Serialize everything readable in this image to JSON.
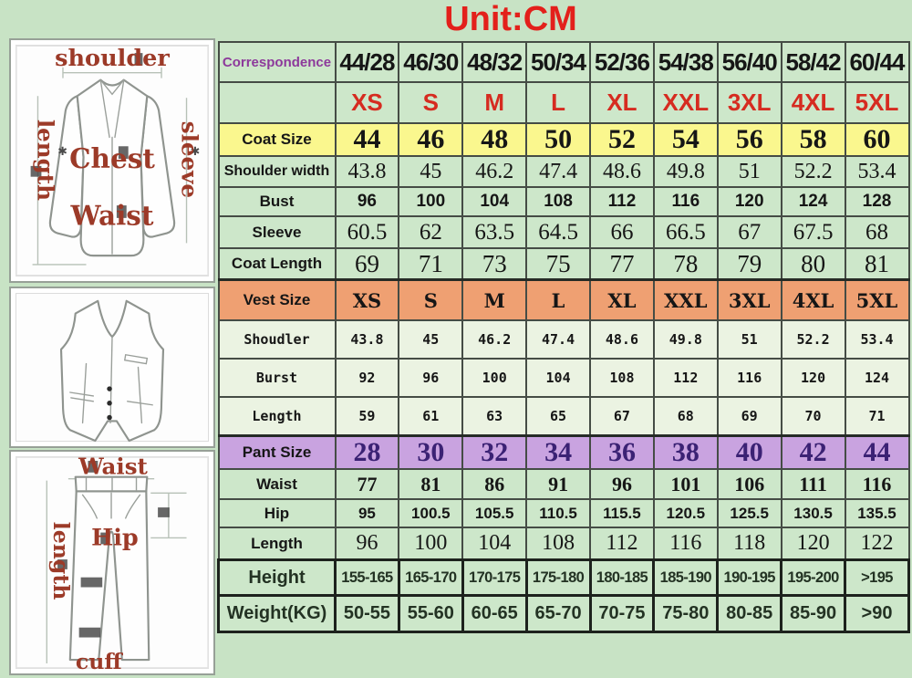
{
  "title": "Unit:CM",
  "colors": {
    "background_green": "#c8e3c5",
    "cell_green": "#cde7ca",
    "vest_row_green": "#ebf3e2",
    "coat_row_yellow": "#faf78e",
    "vest_row_orange": "#efa072",
    "pant_row_purple": "#c9a3e0",
    "title_red": "#e3201b",
    "size_red": "#d62b20",
    "correspondence_purple": "#8d3a9b",
    "pant_number_purple": "#3b2274",
    "diagram_label_red": "#9c3a28"
  },
  "diagrams": {
    "jacket": {
      "shoulder": "shoulder",
      "length": "length",
      "sleeve": "sleeve",
      "chest": "Chest",
      "waist": "Waist"
    },
    "pants": {
      "waist": "Waist",
      "length": "length",
      "hip": "Hip",
      "cuff": "cuff"
    }
  },
  "chart_data": {
    "type": "table",
    "title": "Unit:CM",
    "header_row": {
      "label": "Correspondence",
      "values": [
        "44/28",
        "46/30",
        "48/32",
        "50/34",
        "52/36",
        "54/38",
        "56/40",
        "58/42",
        "60/44"
      ]
    },
    "size_row": {
      "label": "",
      "values": [
        "XS",
        "S",
        "M",
        "L",
        "XL",
        "XXL",
        "3XL",
        "4XL",
        "5XL"
      ]
    },
    "rows": [
      {
        "label": "Coat Size",
        "kind": "coatsize",
        "values": [
          "44",
          "46",
          "48",
          "50",
          "52",
          "54",
          "56",
          "58",
          "60"
        ]
      },
      {
        "label": "Shoulder width",
        "kind": "shoulder",
        "values": [
          "43.8",
          "45",
          "46.2",
          "47.4",
          "48.6",
          "49.8",
          "51",
          "52.2",
          "53.4"
        ]
      },
      {
        "label": "Bust",
        "kind": "bust",
        "values": [
          "96",
          "100",
          "104",
          "108",
          "112",
          "116",
          "120",
          "124",
          "128"
        ]
      },
      {
        "label": "Sleeve",
        "kind": "sleeve",
        "values": [
          "60.5",
          "62",
          "63.5",
          "64.5",
          "66",
          "66.5",
          "67",
          "67.5",
          "68"
        ]
      },
      {
        "label": "Coat Length",
        "kind": "coatlen",
        "values": [
          "69",
          "71",
          "73",
          "75",
          "77",
          "78",
          "79",
          "80",
          "81"
        ]
      },
      {
        "label": "Vest Size",
        "kind": "vestsize",
        "values": [
          "XS",
          "S",
          "M",
          "L",
          "XL",
          "XXL",
          "3XL",
          "4XL",
          "5XL"
        ]
      },
      {
        "label": "Shoudler",
        "kind": "vest",
        "values": [
          "43.8",
          "45",
          "46.2",
          "47.4",
          "48.6",
          "49.8",
          "51",
          "52.2",
          "53.4"
        ]
      },
      {
        "label": "Burst",
        "kind": "vest",
        "values": [
          "92",
          "96",
          "100",
          "104",
          "108",
          "112",
          "116",
          "120",
          "124"
        ]
      },
      {
        "label": "Length",
        "kind": "vest",
        "values": [
          "59",
          "61",
          "63",
          "65",
          "67",
          "68",
          "69",
          "70",
          "71"
        ]
      },
      {
        "label": "Pant Size",
        "kind": "pantsize",
        "values": [
          "28",
          "30",
          "32",
          "34",
          "36",
          "38",
          "40",
          "42",
          "44"
        ]
      },
      {
        "label": "Waist",
        "kind": "waist",
        "values": [
          "77",
          "81",
          "86",
          "91",
          "96",
          "101",
          "106",
          "111",
          "116"
        ]
      },
      {
        "label": "Hip",
        "kind": "hip",
        "values": [
          "95",
          "100.5",
          "105.5",
          "110.5",
          "115.5",
          "120.5",
          "125.5",
          "130.5",
          "135.5"
        ]
      },
      {
        "label": "Length",
        "kind": "pantlen",
        "values": [
          "96",
          "100",
          "104",
          "108",
          "112",
          "116",
          "118",
          "120",
          "122"
        ]
      },
      {
        "label": "Height",
        "kind": "height",
        "values": [
          "155-165",
          "165-170",
          "170-175",
          "175-180",
          "180-185",
          "185-190",
          "190-195",
          "195-200",
          ">195"
        ]
      },
      {
        "label": "Weight(KG)",
        "kind": "weight",
        "values": [
          "50-55",
          "55-60",
          "60-65",
          "65-70",
          "70-75",
          "75-80",
          "80-85",
          "85-90",
          ">90"
        ]
      }
    ]
  }
}
